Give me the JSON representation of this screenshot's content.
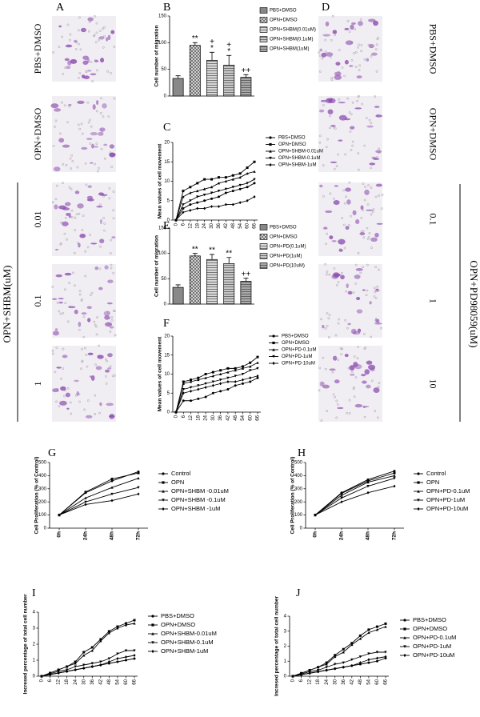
{
  "image_panels": {
    "left": {
      "letter": "A",
      "rows": [
        "PBS+DMSO",
        "OPN+DMSO",
        "0.01",
        "0.1",
        "1"
      ],
      "group_label": "OPN+SHBM(uM)"
    },
    "right": {
      "letter": "D",
      "rows": [
        "PBS+DMSO",
        "OPN+DMSO",
        "0.1",
        "1",
        "10"
      ],
      "group_label": "OPN+PD98059(uM)"
    }
  },
  "chart_data": [
    {
      "type": "bar",
      "label": "B",
      "y_label": "Cell number of migration",
      "categories": [
        "PBS+DMSO",
        "OPN+DMSO",
        "OPN+SHBM(0.01uM)",
        "OPN+SHBM(0.1uM)",
        "OPN+SHBM(1uM)"
      ],
      "values": [
        33,
        95,
        67,
        58,
        35
      ],
      "errors": [
        5,
        5,
        15,
        18,
        5
      ],
      "markers": [
        null,
        [
          "**"
        ],
        [
          "+",
          "*"
        ],
        [
          "+",
          "*"
        ],
        [
          "++"
        ]
      ],
      "colors": [
        "#888888",
        "#e0e0e0",
        "#d8d8d8",
        "#c8c8c8",
        "#a8a8a8"
      ],
      "patterns": [
        "none",
        "cross",
        "hline",
        "hline",
        "hline"
      ],
      "ylim": [
        0,
        150
      ],
      "yticks": [
        0,
        50,
        100,
        150
      ]
    },
    {
      "type": "line",
      "label": "C",
      "y_label": "Mean values of cell movement",
      "x": [
        0,
        6,
        12,
        18,
        24,
        30,
        36,
        42,
        48,
        54,
        60,
        66
      ],
      "xlim": [
        0,
        66
      ],
      "xticks": [
        0,
        6,
        12,
        18,
        24,
        30,
        36,
        42,
        48,
        54,
        60,
        66
      ],
      "ylim": [
        0,
        20
      ],
      "yticks": [
        0,
        5,
        10,
        15,
        20
      ],
      "series": [
        {
          "name": "PBS+DMSO",
          "color": "#000000",
          "marker": "circle",
          "values": [
            0,
            3,
            4,
            4.5,
            5,
            5.5,
            6,
            7,
            7.5,
            8,
            8.5,
            9.5
          ]
        },
        {
          "name": "OPN+DMSO",
          "color": "#000000",
          "marker": "square",
          "values": [
            0,
            7.5,
            8.5,
            9.5,
            10.5,
            10.5,
            11,
            11,
            11.5,
            12,
            13.5,
            15
          ]
        },
        {
          "name": "OPN+SHBM-0.01uM",
          "color": "#000000",
          "marker": "triangle-up",
          "values": [
            0,
            6,
            7,
            7.5,
            8,
            8.5,
            9.5,
            10,
            10.5,
            11,
            12,
            12.5
          ]
        },
        {
          "name": "OPN+SHBM-0.1uM",
          "color": "#000000",
          "marker": "triangle-down",
          "values": [
            0,
            4,
            5,
            6,
            6.5,
            7,
            7.5,
            8,
            8.5,
            9,
            9.5,
            10.5
          ]
        },
        {
          "name": "OPN+SHBM-1uM",
          "color": "#000000",
          "marker": "diamond",
          "values": [
            0,
            2,
            2.5,
            3,
            3,
            3.5,
            3.5,
            4,
            4,
            4.5,
            5,
            6
          ]
        }
      ]
    },
    {
      "type": "bar",
      "label": "E",
      "y_label": "Cell number of migration",
      "categories": [
        "PBS+DMSO",
        "OPN+DMSO",
        "OPN+PD(0.1uM)",
        "OPN+PD(1uM)",
        "OPN+PD(10uM)"
      ],
      "values": [
        33,
        95,
        88,
        80,
        45
      ],
      "errors": [
        5,
        5,
        10,
        12,
        6
      ],
      "markers": [
        null,
        [
          "**"
        ],
        [
          "**"
        ],
        [
          "**"
        ],
        [
          "++"
        ]
      ],
      "colors": [
        "#888888",
        "#e0e0e0",
        "#d8d8d8",
        "#c8c8c8",
        "#a8a8a8"
      ],
      "patterns": [
        "none",
        "cross",
        "hline",
        "hline",
        "hline"
      ],
      "ylim": [
        0,
        150
      ],
      "yticks": [
        0,
        50,
        100,
        150
      ]
    },
    {
      "type": "line",
      "label": "F",
      "y_label": "Mean values of cell movement",
      "x": [
        0,
        6,
        12,
        18,
        24,
        30,
        36,
        42,
        48,
        54,
        60,
        66
      ],
      "xlim": [
        0,
        66
      ],
      "xticks": [
        0,
        6,
        12,
        18,
        24,
        30,
        36,
        42,
        48,
        54,
        60,
        66
      ],
      "ylim": [
        0,
        20
      ],
      "yticks": [
        0,
        5,
        10,
        15,
        20
      ],
      "series": [
        {
          "name": "PBS+DMSO",
          "color": "#000000",
          "marker": "circle",
          "values": [
            0,
            3,
            3,
            3.5,
            4,
            5,
            5.5,
            6,
            7,
            7.5,
            8,
            9
          ]
        },
        {
          "name": "OPN+DMSO",
          "color": "#000000",
          "marker": "square",
          "values": [
            0,
            8,
            8.5,
            9,
            10,
            10.5,
            11,
            11.5,
            11.5,
            12,
            13,
            14.5
          ]
        },
        {
          "name": "OPN+PD-0.1uM",
          "color": "#000000",
          "marker": "triangle-up",
          "values": [
            0,
            7.5,
            8,
            8.5,
            9,
            9.5,
            10,
            10.5,
            11,
            11.5,
            12,
            13
          ]
        },
        {
          "name": "OPN+PD-1uM",
          "color": "#000000",
          "marker": "triangle-down",
          "values": [
            0,
            6,
            6.5,
            7,
            7.5,
            8,
            8.5,
            9,
            9.5,
            10,
            11,
            11.5
          ]
        },
        {
          "name": "OPN+PD-10uM",
          "color": "#000000",
          "marker": "diamond",
          "values": [
            0,
            5,
            5.5,
            6,
            6.5,
            7,
            7.5,
            8,
            8,
            8.5,
            9,
            9.5
          ]
        }
      ]
    },
    {
      "type": "line",
      "label": "G",
      "y_label": "Cell Proliferation (% of Control)",
      "categories": [
        "0h",
        "24h",
        "48h",
        "72h"
      ],
      "ylim": [
        0,
        500
      ],
      "yticks": [
        0,
        100,
        200,
        300,
        400,
        500
      ],
      "series": [
        {
          "name": "Control",
          "color": "#000000",
          "marker": "circle",
          "values": [
            100,
            270,
            360,
            430
          ]
        },
        {
          "name": "OPN",
          "color": "#000000",
          "marker": "square",
          "values": [
            100,
            275,
            375,
            420
          ]
        },
        {
          "name": "OPN+SHBM -0.01uM",
          "color": "#000000",
          "marker": "triangle-up",
          "values": [
            100,
            230,
            310,
            380
          ]
        },
        {
          "name": "OPN+SHBM -0.1uM",
          "color": "#000000",
          "marker": "triangle-down",
          "values": [
            100,
            200,
            260,
            310
          ]
        },
        {
          "name": "OPN+SHBM -1uM",
          "color": "#000000",
          "marker": "diamond",
          "values": [
            100,
            180,
            210,
            260
          ]
        }
      ]
    },
    {
      "type": "line",
      "label": "H",
      "y_label": "Cell Proliferation (% of Control)",
      "categories": [
        "0h",
        "24h",
        "48h",
        "72h"
      ],
      "ylim": [
        0,
        500
      ],
      "yticks": [
        0,
        100,
        200,
        300,
        400,
        500
      ],
      "series": [
        {
          "name": "Control",
          "color": "#000000",
          "marker": "circle",
          "values": [
            100,
            270,
            370,
            435
          ]
        },
        {
          "name": "OPN",
          "color": "#000000",
          "marker": "square",
          "values": [
            100,
            265,
            360,
            420
          ]
        },
        {
          "name": "OPN+PD-0.1uM",
          "color": "#000000",
          "marker": "triangle-up",
          "values": [
            100,
            250,
            350,
            400
          ]
        },
        {
          "name": "OPN+PD-1uM",
          "color": "#000000",
          "marker": "triangle-down",
          "values": [
            100,
            230,
            320,
            380
          ]
        },
        {
          "name": "OPN+PD-10uM",
          "color": "#000000",
          "marker": "diamond",
          "values": [
            100,
            200,
            270,
            320
          ]
        }
      ]
    },
    {
      "type": "line",
      "label": "I",
      "y_label": "Incresed percentage of total cell number",
      "x": [
        0,
        6,
        12,
        18,
        24,
        30,
        36,
        42,
        48,
        54,
        60,
        66
      ],
      "xlim": [
        0,
        66
      ],
      "xticks": [
        0,
        6,
        12,
        18,
        24,
        30,
        36,
        42,
        48,
        54,
        60,
        66
      ],
      "ylim": [
        0,
        4
      ],
      "yticks": [
        0,
        1,
        2,
        3,
        4
      ],
      "series": [
        {
          "name": "PBS+DMSO",
          "color": "#000000",
          "marker": "circle",
          "values": [
            0,
            0.1,
            0.2,
            0.3,
            0.4,
            0.5,
            0.6,
            0.7,
            0.8,
            0.9,
            1,
            1.1
          ]
        },
        {
          "name": "OPN+DMSO",
          "color": "#000000",
          "marker": "square",
          "values": [
            0,
            0.2,
            0.4,
            0.6,
            0.9,
            1.5,
            1.8,
            2.3,
            2.8,
            3.1,
            3.3,
            3.5
          ]
        },
        {
          "name": "OPN+SHBM-0.01uM",
          "color": "#000000",
          "marker": "triangle-up",
          "values": [
            0,
            0.2,
            0.4,
            0.6,
            0.8,
            1.3,
            1.6,
            2.2,
            2.7,
            3,
            3.2,
            3.3
          ]
        },
        {
          "name": "OPN+SHBM-0.1uM",
          "color": "#000000",
          "marker": "triangle-down",
          "values": [
            0,
            0.15,
            0.3,
            0.4,
            0.6,
            0.7,
            0.8,
            0.9,
            1.1,
            1.4,
            1.6,
            1.6
          ]
        },
        {
          "name": "OPN+SHBM-1uM",
          "color": "#000000",
          "marker": "diamond",
          "values": [
            0,
            0.1,
            0.2,
            0.3,
            0.4,
            0.5,
            0.6,
            0.7,
            0.9,
            1.1,
            1.2,
            1.3
          ]
        }
      ]
    },
    {
      "type": "line",
      "label": "J",
      "y_label": "Incresed percentage of total cell number",
      "x": [
        0,
        6,
        12,
        18,
        24,
        30,
        36,
        42,
        48,
        54,
        60,
        66
      ],
      "xlim": [
        0,
        66
      ],
      "xticks": [
        0,
        6,
        12,
        18,
        24,
        30,
        36,
        42,
        48,
        54,
        60,
        66
      ],
      "ylim": [
        0,
        4
      ],
      "yticks": [
        0,
        1,
        2,
        3,
        4
      ],
      "series": [
        {
          "name": "PBS+DMSO",
          "color": "#000000",
          "marker": "circle",
          "values": [
            0,
            0.1,
            0.2,
            0.3,
            0.4,
            0.5,
            0.6,
            0.7,
            0.8,
            0.9,
            1,
            1.2
          ]
        },
        {
          "name": "OPN+DMSO",
          "color": "#000000",
          "marker": "square",
          "values": [
            0,
            0.2,
            0.4,
            0.6,
            0.9,
            1.4,
            1.8,
            2.2,
            2.7,
            3.1,
            3.3,
            3.5
          ]
        },
        {
          "name": "OPN+PD-0.1uM",
          "color": "#000000",
          "marker": "triangle-up",
          "values": [
            0,
            0.2,
            0.4,
            0.6,
            0.8,
            1.3,
            1.6,
            2.1,
            2.5,
            2.9,
            3.1,
            3.3
          ]
        },
        {
          "name": "OPN+PD-1uM",
          "color": "#000000",
          "marker": "triangle-down",
          "values": [
            0,
            0.15,
            0.3,
            0.4,
            0.6,
            0.8,
            0.9,
            1.1,
            1.3,
            1.5,
            1.6,
            1.6
          ]
        },
        {
          "name": "OPN+PD-10uM",
          "color": "#000000",
          "marker": "diamond",
          "values": [
            0,
            0.1,
            0.2,
            0.3,
            0.4,
            0.5,
            0.6,
            0.7,
            0.9,
            1.1,
            1.2,
            1.3
          ]
        }
      ]
    }
  ]
}
